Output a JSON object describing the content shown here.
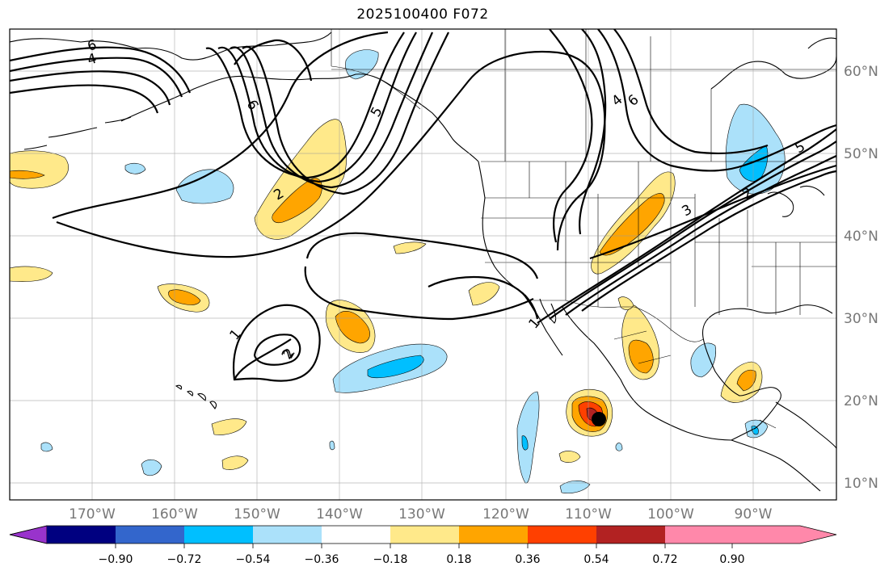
{
  "title": "2025100400 F072",
  "map": {
    "lon_range": [
      -180,
      -80
    ],
    "lat_range": [
      8,
      65
    ],
    "latitude_labels": [
      "60°N",
      "50°N",
      "40°N",
      "30°N",
      "20°N",
      "10°N"
    ],
    "longitude_labels": [
      "170°W",
      "160°W",
      "150°W",
      "140°W",
      "130°W",
      "120°W",
      "110°W",
      "100°W",
      "90°W"
    ],
    "contour_labels": [
      "6",
      "4",
      "6",
      "5",
      "2",
      "2",
      "1",
      "2",
      "1",
      "4",
      "6",
      "3",
      "2",
      "5"
    ],
    "storm_marker": "storm-center"
  },
  "colorbar": {
    "colors": [
      "#9933cc",
      "#000080",
      "#3366cc",
      "#00bfff",
      "#abe1fa",
      "#ffffff",
      "#ffe98a",
      "#ffa500",
      "#ff4000",
      "#b22222",
      "#ff88aa"
    ],
    "tick_labels": [
      "−0.90",
      "−0.72",
      "−0.54",
      "−0.36",
      "−0.18",
      "0.18",
      "0.36",
      "0.54",
      "0.72",
      "0.90"
    ]
  }
}
